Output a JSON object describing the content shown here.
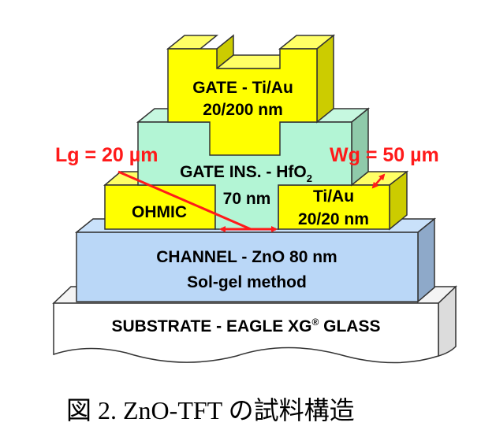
{
  "colors": {
    "gate": "#ffff00",
    "ohmic": "#ffff00",
    "insulator": "#b3f5d5",
    "channel": "#bad7f7",
    "substrate": "#ffffff",
    "annotation": "#ff1a1a"
  },
  "gate": {
    "line1": "GATE - Ti/Au",
    "line2": "20/200 nm"
  },
  "insulator": {
    "line1": "GATE INS. - HfO",
    "line1_sub": "2",
    "line2": "70 nm"
  },
  "ohmic_left": {
    "label": "OHMIC"
  },
  "ohmic_right": {
    "line1": "Ti/Au",
    "line2": "20/20 nm"
  },
  "channel": {
    "line1": "CHANNEL - ZnO 80 nm",
    "line2": "Sol-gel method"
  },
  "substrate": {
    "label": "SUBSTRATE - EAGLE XG",
    "reg": "®",
    "label_end": " GLASS"
  },
  "annotations": {
    "lg": "Lg = 20 µm",
    "wg": "Wg = 50 µm"
  },
  "caption": "図 2.  ZnO-TFT の試料構造"
}
